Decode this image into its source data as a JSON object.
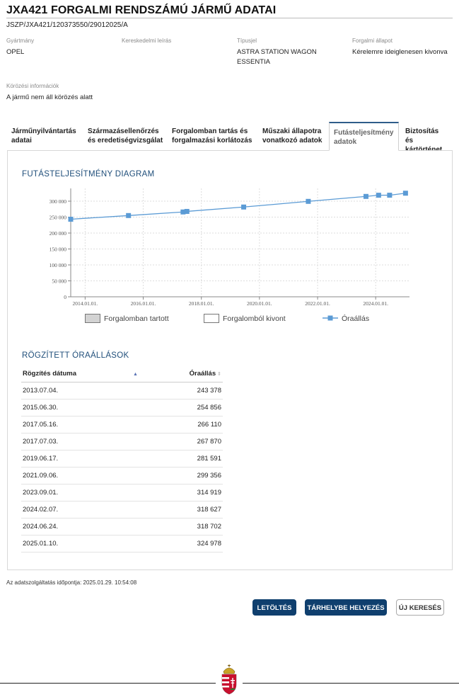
{
  "header": {
    "title": "JXA421 FORGALMI RENDSZÁMÚ JÁRMŰ ADATAI",
    "document_id": "JSZP/JXA421/120373550/29012025/A"
  },
  "vehicle": {
    "manufacturer_label": "Gyártmány",
    "manufacturer": "OPEL",
    "commercial_label": "Kereskedelmi leírás",
    "commercial": "",
    "type_label": "Típusjel",
    "type_line1": "ASTRA STATION WAGON",
    "type_line2": "ESSENTIA",
    "status_label": "Forgalmi állapot",
    "status": "Kérelemre ideiglenesen kivonva",
    "search_label": "Körözési információk",
    "search_value": "A jármű nem áll körözés alatt"
  },
  "tabs": [
    {
      "line1": "Járműnyilvántartás",
      "line2": "adatai"
    },
    {
      "line1": "Származásellenőrzés",
      "line2": "és eredetiségvizsgálat"
    },
    {
      "line1": "Forgalomban tartás és",
      "line2": "forgalmazási korlátozás"
    },
    {
      "line1": "Műszaki állapotra",
      "line2": "vonatkozó adatok"
    },
    {
      "line1": "Futásteljesítmény",
      "line2": "adatok"
    },
    {
      "line1": "Biztosítás és",
      "line2": "kártörténet"
    }
  ],
  "active_tab_index": 4,
  "chart_section_title": "FUTÁSTELJESÍTMÉNY DIAGRAM",
  "chart_data": {
    "type": "line",
    "x_type": "date",
    "x": [
      "2013.07.04.",
      "2015.06.30.",
      "2017.05.16.",
      "2017.07.03.",
      "2019.06.17.",
      "2021.09.06.",
      "2023.09.01.",
      "2024.02.07.",
      "2024.06.24.",
      "2025.01.10."
    ],
    "series": [
      {
        "name": "Óraállás",
        "values": [
          243378,
          254856,
          266110,
          267870,
          281591,
          299356,
          314919,
          318627,
          318702,
          324978
        ],
        "color": "#5b9bd5"
      }
    ],
    "x_ticks": [
      "2014.01.01.",
      "2016.01.01.",
      "2018.01.01.",
      "2020.01.01.",
      "2022.01.01.",
      "2024.01.01."
    ],
    "x_tick_values": [
      "2014-01-01",
      "2016-01-01",
      "2018-01-01",
      "2020-01-01",
      "2022-01-01",
      "2024-01-01"
    ],
    "y_ticks": [
      "0",
      "50 000",
      "100 000",
      "150 000",
      "200 000",
      "250 000",
      "300 000"
    ],
    "y_tick_values": [
      0,
      50000,
      100000,
      150000,
      200000,
      250000,
      300000
    ],
    "ylim": [
      0,
      340000
    ],
    "xlim": [
      "2013-07-04",
      "2025-03-01"
    ],
    "grid": true,
    "legend": {
      "position": "bottom",
      "items": [
        "Forgalomban tartott",
        "Forgalomból kivont",
        "Óraállás"
      ]
    }
  },
  "table_section_title": "RÖGZÍTETT ÓRAÁLLÁSOK",
  "table": {
    "headers": [
      "Rögzítés dátuma",
      "Óraállás"
    ],
    "rows": [
      [
        "2013.07.04.",
        "243 378"
      ],
      [
        "2015.06.30.",
        "254 856"
      ],
      [
        "2017.05.16.",
        "266 110"
      ],
      [
        "2017.07.03.",
        "267 870"
      ],
      [
        "2019.06.17.",
        "281 591"
      ],
      [
        "2021.09.06.",
        "299 356"
      ],
      [
        "2023.09.01.",
        "314 919"
      ],
      [
        "2024.02.07.",
        "318 627"
      ],
      [
        "2024.06.24.",
        "318 702"
      ],
      [
        "2025.01.10.",
        "324 978"
      ]
    ]
  },
  "timestamp": "Az adatszolgáltatás időpontja: 2025.01.29. 10:54:08",
  "buttons": {
    "download": "LETÖLTÉS",
    "store": "TÁRHELYBE HELYEZÉS",
    "new_search": "ÚJ KERESÉS"
  },
  "colors": {
    "accent": "#1f4e7a",
    "button_primary": "#0f3f6e",
    "series": "#5b9bd5",
    "legend_in_traffic": "#d3d3d3"
  },
  "icons": {
    "footer_emblem": "hungarian-coat-of-arms-icon",
    "sort_asc": "sort-ascending-icon",
    "sort_both": "sort-icon"
  }
}
